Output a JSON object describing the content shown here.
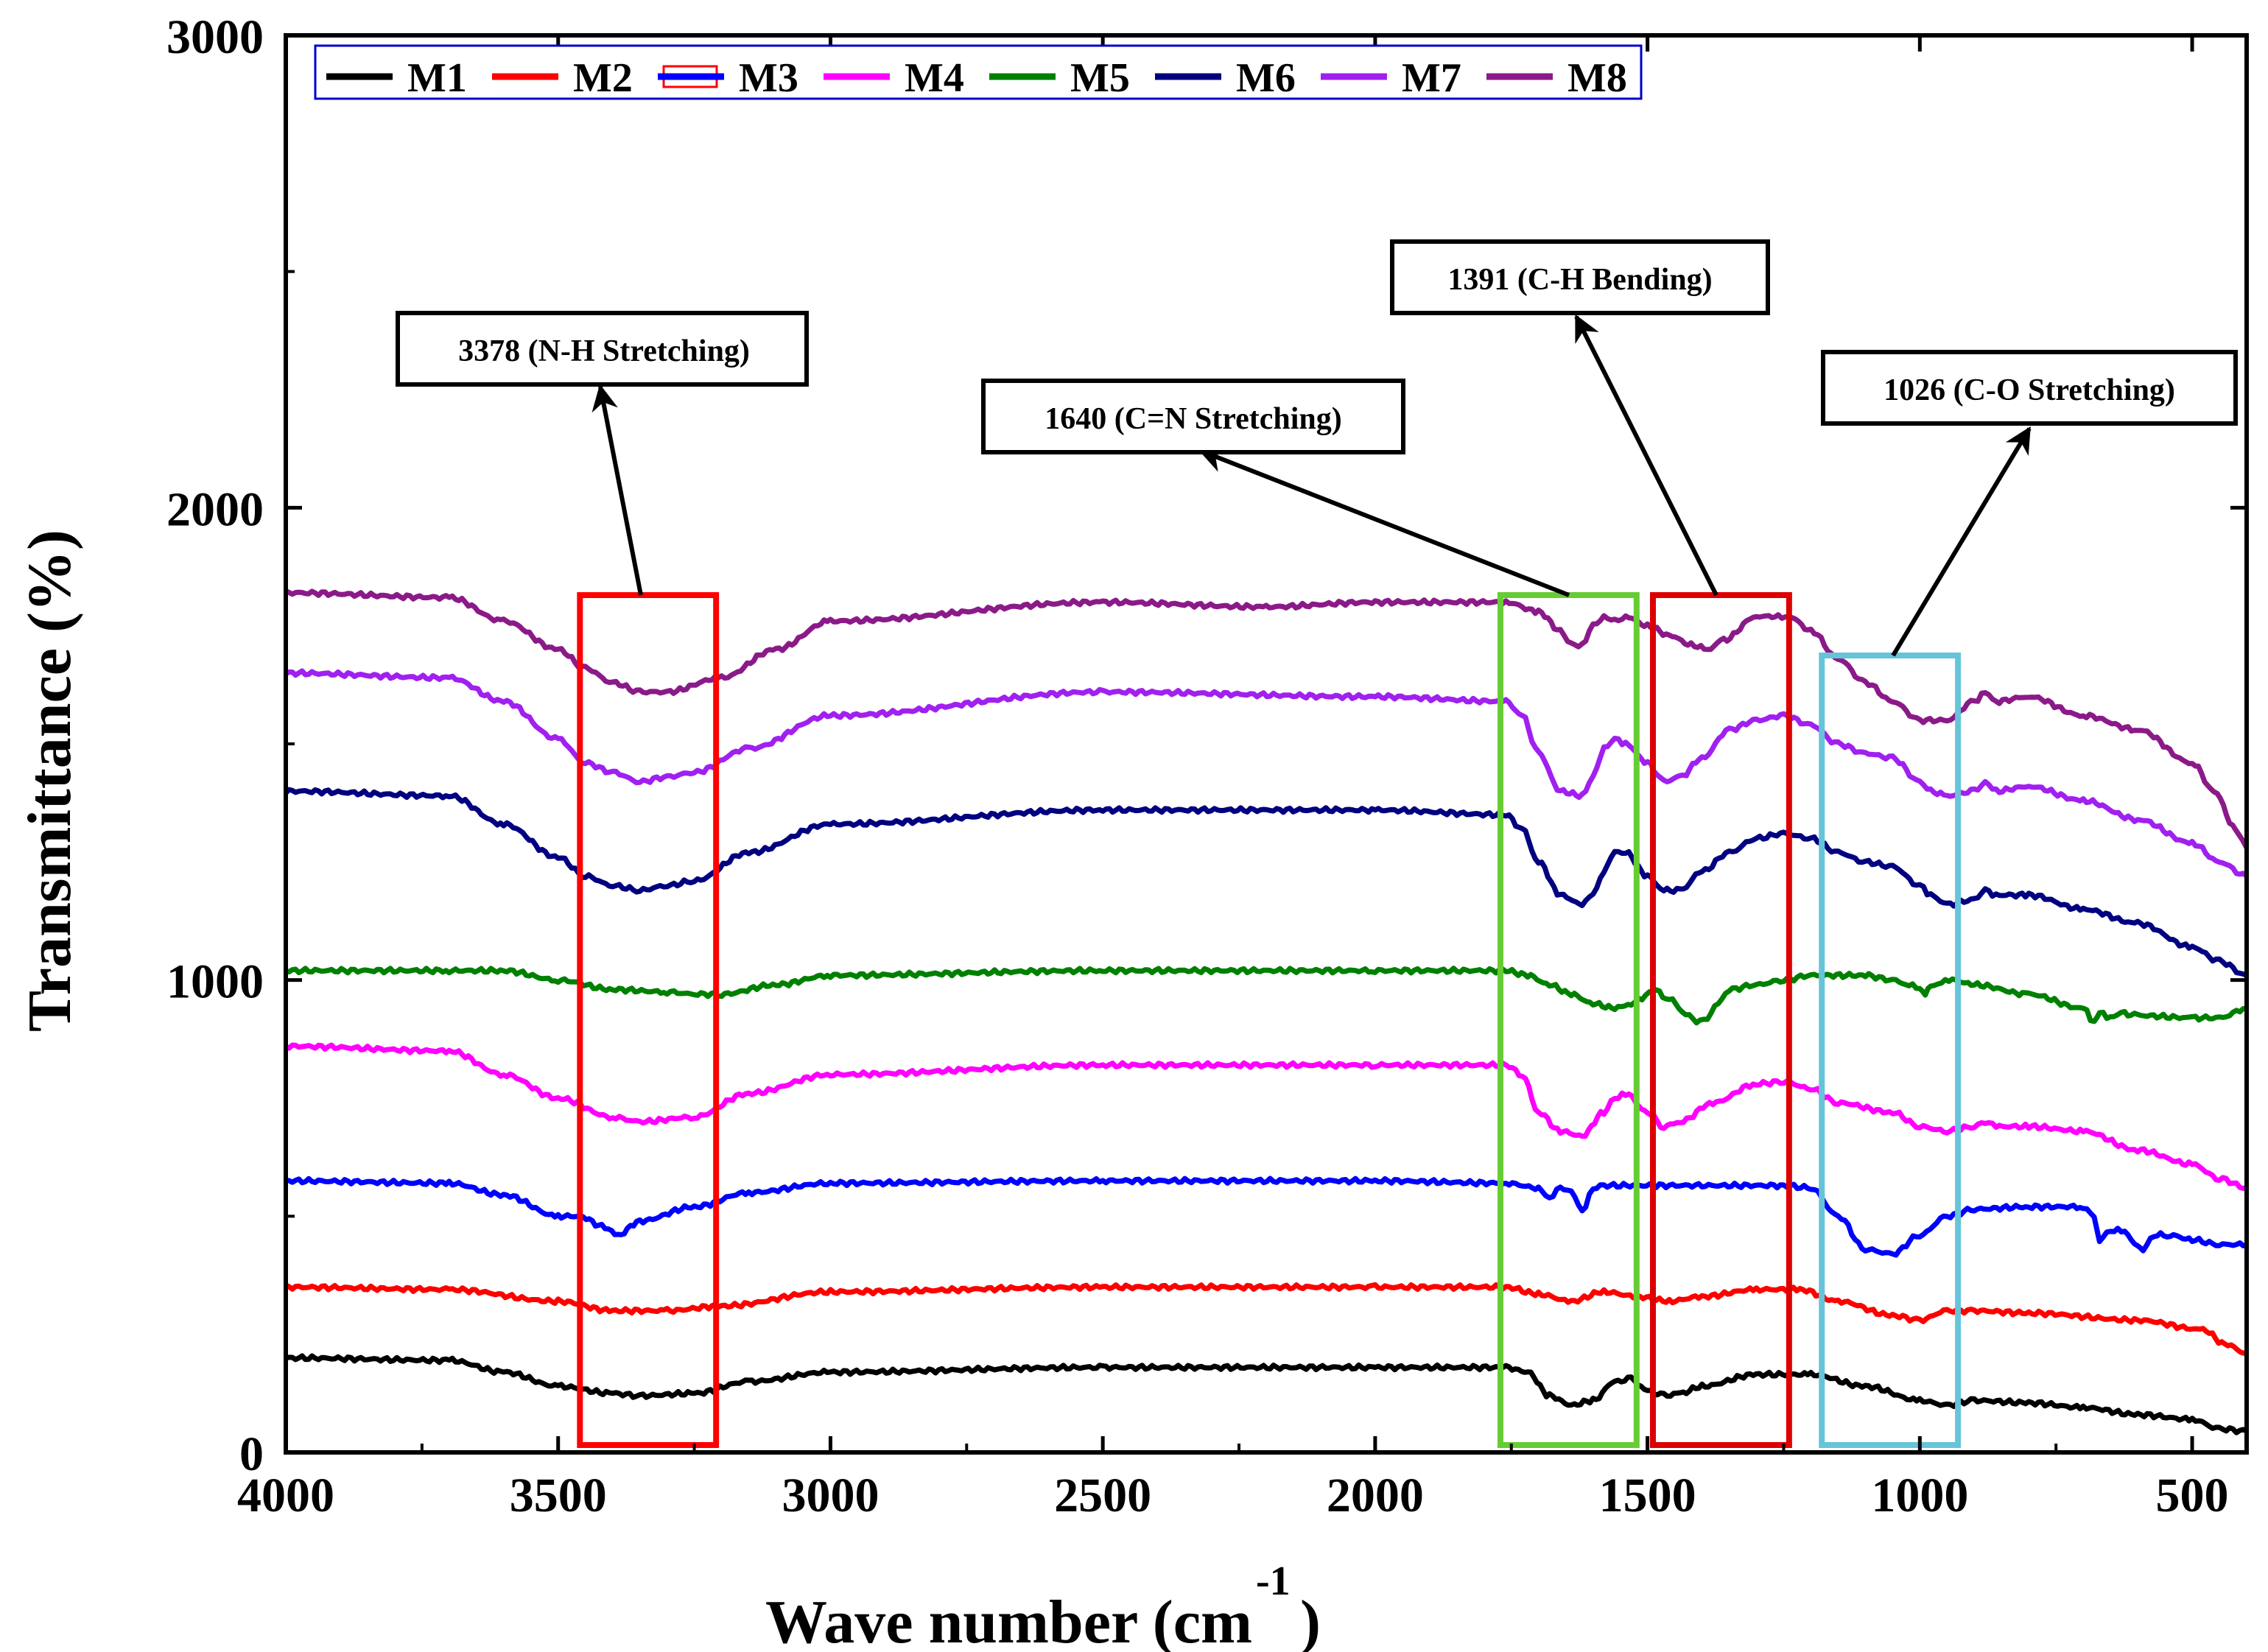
{
  "chart_data": {
    "type": "line",
    "title": "",
    "xlabel": "Wave number (cm",
    "xlabel_sup": "-1",
    "xlabel_close": ")",
    "ylabel": "Transmittance (%)",
    "xlim": [
      4000,
      400
    ],
    "ylim": [
      0,
      3000
    ],
    "xticks": [
      4000,
      3500,
      3000,
      2500,
      2000,
      1500,
      1000,
      500
    ],
    "yticks": [
      0,
      1000,
      2000,
      3000
    ],
    "legend_position": "top-left",
    "series": [
      {
        "name": "M1",
        "color": "#000000",
        "x": [
          4000,
          3700,
          3600,
          3500,
          3400,
          3350,
          3250,
          3150,
          3000,
          2500,
          2000,
          1760,
          1720,
          1680,
          1640,
          1600,
          1560,
          1530,
          1500,
          1470,
          1440,
          1400,
          1300,
          1200,
          1100,
          1000,
          950,
          900,
          800,
          700,
          600,
          500,
          450,
          400
        ],
        "y": [
          200,
          195,
          170,
          140,
          125,
          120,
          125,
          150,
          170,
          180,
          180,
          180,
          170,
          120,
          100,
          110,
          150,
          155,
          130,
          120,
          125,
          140,
          165,
          165,
          140,
          110,
          100,
          110,
          105,
          95,
          80,
          70,
          50,
          45
        ]
      },
      {
        "name": "M2",
        "color": "#ff0000",
        "x": [
          4000,
          3700,
          3500,
          3400,
          3300,
          3200,
          3000,
          2500,
          2000,
          1760,
          1700,
          1640,
          1580,
          1520,
          1460,
          1400,
          1300,
          1220,
          1150,
          1050,
          1000,
          950,
          900,
          800,
          600,
          480,
          440,
          400
        ],
        "y": [
          350,
          345,
          320,
          300,
          300,
          310,
          340,
          350,
          350,
          350,
          335,
          320,
          340,
          330,
          320,
          330,
          345,
          345,
          320,
          290,
          280,
          300,
          300,
          295,
          280,
          260,
          230,
          210
        ]
      },
      {
        "name": "M3",
        "color": "#0000ff",
        "x": [
          4000,
          3700,
          3600,
          3500,
          3460,
          3420,
          3390,
          3350,
          3250,
          3150,
          3000,
          2500,
          2000,
          1760,
          1700,
          1680,
          1660,
          1640,
          1620,
          1600,
          1580,
          1400,
          1250,
          1200,
          1150,
          1100,
          1050,
          1000,
          950,
          900,
          800,
          700,
          680,
          670,
          650,
          630,
          600,
          590,
          570,
          540,
          500,
          450,
          400
        ],
        "y": [
          575,
          570,
          545,
          500,
          500,
          480,
          460,
          490,
          520,
          550,
          570,
          575,
          575,
          570,
          560,
          540,
          560,
          555,
          510,
          560,
          565,
          565,
          565,
          560,
          500,
          430,
          420,
          460,
          500,
          515,
          520,
          520,
          500,
          450,
          470,
          470,
          440,
          430,
          460,
          460,
          450,
          440,
          440
        ]
      },
      {
        "name": "M4",
        "color": "#ff00ff",
        "x": [
          4000,
          3700,
          3600,
          3500,
          3400,
          3350,
          3250,
          3150,
          3000,
          2500,
          2000,
          1760,
          1730,
          1700,
          1660,
          1620,
          1580,
          1560,
          1540,
          1500,
          1470,
          1440,
          1380,
          1300,
          1250,
          1200,
          1150,
          1050,
          1000,
          950,
          900,
          880,
          860,
          800,
          700,
          600,
          500,
          450,
          400
        ],
        "y": [
          860,
          850,
          800,
          750,
          710,
          700,
          710,
          760,
          800,
          820,
          820,
          820,
          800,
          720,
          680,
          670,
          720,
          750,
          760,
          720,
          690,
          700,
          740,
          780,
          785,
          770,
          740,
          720,
          690,
          680,
          690,
          700,
          690,
          690,
          680,
          640,
          610,
          580,
          560
        ]
      },
      {
        "name": "M5",
        "color": "#008000",
        "x": [
          4000,
          3700,
          3600,
          3500,
          3400,
          3300,
          3250,
          3200,
          3100,
          3000,
          2500,
          2000,
          1760,
          1720,
          1680,
          1640,
          1600,
          1560,
          1530,
          1510,
          1490,
          1460,
          1430,
          1410,
          1390,
          1370,
          1350,
          1300,
          1250,
          1200,
          1100,
          1050,
          1020,
          1000,
          990,
          980,
          960,
          940,
          900,
          800,
          700,
          680,
          670,
          650,
          630,
          600,
          500,
          450,
          400
        ],
        "y": [
          1020,
          1020,
          1020,
          1000,
          980,
          975,
          970,
          970,
          990,
          1010,
          1020,
          1020,
          1020,
          1010,
          990,
          970,
          950,
          940,
          950,
          960,
          980,
          960,
          930,
          910,
          920,
          950,
          980,
          990,
          1000,
          1010,
          1010,
          1000,
          990,
          980,
          970,
          985,
          995,
          1000,
          990,
          970,
          940,
          910,
          930,
          920,
          930,
          925,
          920,
          920,
          940
        ]
      },
      {
        "name": "M6",
        "color": "#000080",
        "x": [
          4000,
          3700,
          3600,
          3500,
          3450,
          3400,
          3350,
          3300,
          3250,
          3150,
          3000,
          2500,
          2000,
          1760,
          1730,
          1700,
          1660,
          1620,
          1600,
          1580,
          1560,
          1540,
          1500,
          1470,
          1440,
          1400,
          1350,
          1300,
          1250,
          1200,
          1150,
          1100,
          1050,
          1000,
          980,
          950,
          900,
          880,
          860,
          800,
          700,
          600,
          500,
          450,
          400
        ],
        "y": [
          1400,
          1390,
          1330,
          1260,
          1220,
          1200,
          1190,
          1200,
          1210,
          1270,
          1330,
          1360,
          1360,
          1350,
          1320,
          1250,
          1180,
          1160,
          1180,
          1230,
          1270,
          1270,
          1220,
          1190,
          1190,
          1230,
          1270,
          1300,
          1310,
          1300,
          1270,
          1250,
          1240,
          1200,
          1180,
          1160,
          1170,
          1190,
          1180,
          1180,
          1150,
          1120,
          1070,
          1040,
          1010
        ]
      },
      {
        "name": "M7",
        "color": "#a020f0",
        "x": [
          4000,
          3700,
          3600,
          3500,
          3450,
          3400,
          3350,
          3300,
          3250,
          3150,
          3000,
          2500,
          2000,
          1760,
          1730,
          1700,
          1660,
          1620,
          1600,
          1580,
          1560,
          1540,
          1500,
          1470,
          1440,
          1400,
          1350,
          1300,
          1250,
          1200,
          1150,
          1100,
          1050,
          1000,
          980,
          950,
          900,
          880,
          860,
          800,
          700,
          600,
          500,
          450,
          400
        ],
        "y": [
          1650,
          1640,
          1590,
          1510,
          1460,
          1440,
          1420,
          1430,
          1440,
          1490,
          1560,
          1610,
          1600,
          1590,
          1560,
          1480,
          1400,
          1390,
          1430,
          1490,
          1510,
          1500,
          1460,
          1420,
          1430,
          1470,
          1530,
          1550,
          1560,
          1540,
          1500,
          1480,
          1470,
          1420,
          1400,
          1390,
          1400,
          1420,
          1400,
          1410,
          1380,
          1340,
          1290,
          1250,
          1220
        ]
      },
      {
        "name": "M8",
        "color": "#8b1a89",
        "x": [
          4000,
          3700,
          3600,
          3500,
          3450,
          3400,
          3350,
          3300,
          3200,
          3100,
          3000,
          2500,
          2200,
          2000,
          1760,
          1700,
          1660,
          1640,
          1620,
          1600,
          1580,
          1560,
          1540,
          1500,
          1460,
          1420,
          1390,
          1360,
          1300,
          1260,
          1240,
          1200,
          1150,
          1100,
          1050,
          1000,
          950,
          900,
          880,
          860,
          800,
          700,
          600,
          500,
          460,
          420,
          400
        ],
        "y": [
          1820,
          1810,
          1760,
          1700,
          1660,
          1630,
          1610,
          1610,
          1640,
          1700,
          1760,
          1800,
          1790,
          1800,
          1800,
          1780,
          1740,
          1710,
          1710,
          1750,
          1770,
          1760,
          1770,
          1750,
          1730,
          1710,
          1700,
          1720,
          1770,
          1770,
          1770,
          1740,
          1680,
          1630,
          1590,
          1550,
          1550,
          1590,
          1610,
          1590,
          1600,
          1560,
          1530,
          1460,
          1400,
          1320,
          1280
        ]
      }
    ],
    "annotations": [
      {
        "label": "3378 (N-H Stretching)",
        "box_color": "#ff0000",
        "x_range": [
          3460,
          3210
        ]
      },
      {
        "label": "1640 (C=N Stretching)",
        "box_color": "#66cc33",
        "x_range": [
          1770,
          1520
        ]
      },
      {
        "label": "1391 (C-H Bending)",
        "box_color": "#dd0000",
        "x_range": [
          1490,
          1240
        ]
      },
      {
        "label": "1026 (C-O Stretching)",
        "box_color": "#66c4d9",
        "x_range": [
          1180,
          930
        ]
      }
    ],
    "legend_symbol_note": "M3 legend symbol drawn as a small red box with blue line",
    "frame_color": "#000000"
  }
}
